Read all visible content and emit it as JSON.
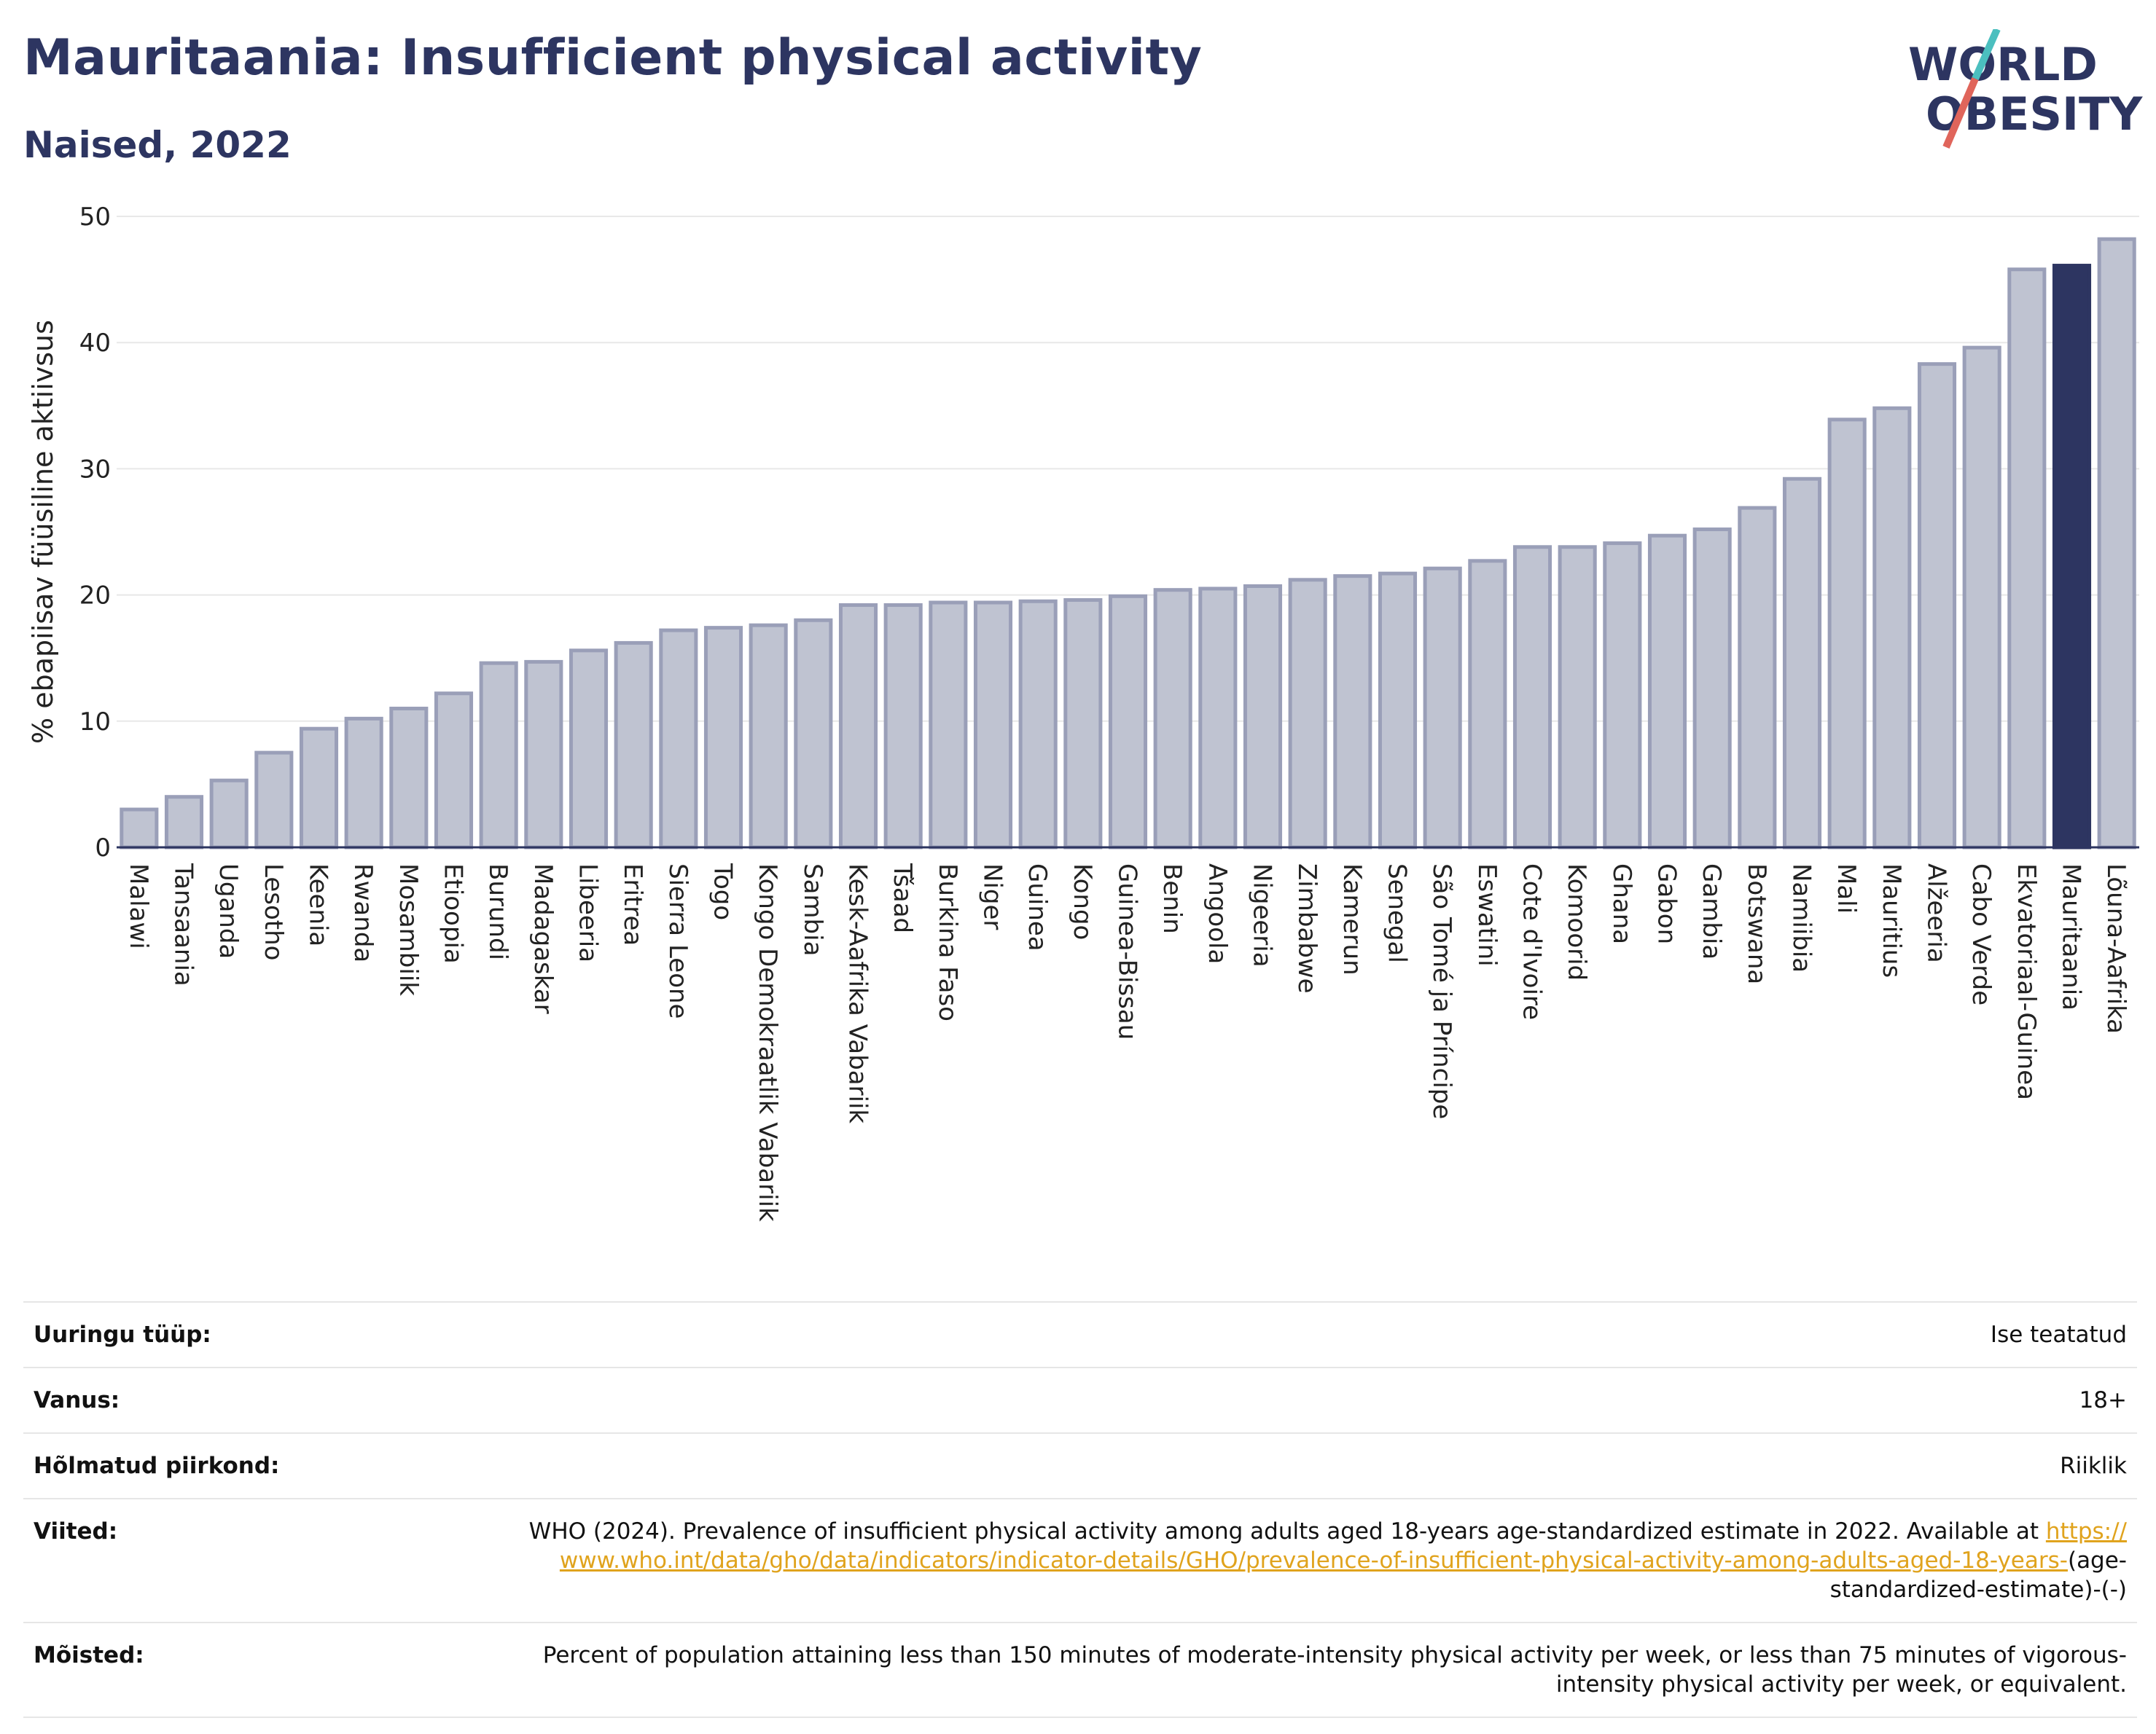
{
  "header": {
    "title": "Mauritaania: Insufficient physical activity",
    "subtitle": "Naised, 2022"
  },
  "logo": {
    "line1": "WORLD",
    "line2": "OBESITY",
    "accent_colors": [
      "#4bbfbf",
      "#e0655b"
    ],
    "text_color": "#2d3561"
  },
  "colors": {
    "bar": "#bfc3d1",
    "bar_stroke": "#9a9fb8",
    "highlight": "#2d3561",
    "grid": "#e8e8e8"
  },
  "chart_data": {
    "type": "bar",
    "ylabel": "% ebapiisav füüsiline aktiivsus",
    "xlabel": "",
    "ylim": [
      0,
      50
    ],
    "yticks": [
      0,
      10,
      20,
      30,
      40,
      50
    ],
    "grid": true,
    "highlight": "Mauritaania",
    "categories": [
      "Malawi",
      "Tansaania",
      "Uganda",
      "Lesotho",
      "Keenia",
      "Rwanda",
      "Mosambiik",
      "Etioopia",
      "Burundi",
      "Madagaskar",
      "Libeeria",
      "Eritrea",
      "Sierra Leone",
      "Togo",
      "Kongo Demokraatlik Vabariik",
      "Sambia",
      "Kesk-Aafrika Vabariik",
      "Tšaad",
      "Burkina Faso",
      "Niger",
      "Guinea",
      "Kongo",
      "Guinea-Bissau",
      "Benin",
      "Angoola",
      "Nigeeria",
      "Zimbabwe",
      "Kamerun",
      "Senegal",
      "São Tomé ja Príncipe",
      "Eswatini",
      "Cote d'Ivoire",
      "Komoorid",
      "Ghana",
      "Gabon",
      "Gambia",
      "Botswana",
      "Namiibia",
      "Mali",
      "Mauritius",
      "Alžeeria",
      "Cabo Verde",
      "Ekvatoriaal-Guinea",
      "Mauritaania",
      "Lõuna-Aafrika"
    ],
    "values": [
      3.0,
      4.0,
      5.3,
      7.5,
      9.4,
      10.2,
      11.0,
      12.2,
      14.6,
      14.7,
      15.6,
      16.2,
      17.2,
      17.4,
      17.6,
      18.0,
      19.2,
      19.2,
      19.4,
      19.4,
      19.5,
      19.6,
      19.9,
      20.4,
      20.5,
      20.7,
      21.2,
      21.5,
      21.7,
      22.1,
      22.7,
      23.8,
      23.8,
      24.1,
      24.7,
      25.2,
      26.9,
      29.2,
      33.9,
      34.8,
      38.3,
      39.6,
      45.8,
      46.1,
      48.2
    ]
  },
  "meta": [
    {
      "label": "Uuringu tüüp:",
      "value": "Ise teatatud"
    },
    {
      "label": "Vanus:",
      "value": "18+"
    },
    {
      "label": "Hõlmatud piirkond:",
      "value": "Riiklik"
    },
    {
      "label": "Viited:",
      "value": "WHO (2024). Prevalence of insufficient physical activity among adults aged 18-years age-standardized estimate in 2022. Available at",
      "link": "https://www.who.int/data/gho/data/indicators/indicator-details/GHO/prevalence-of-insufficient-physical-activity-among-adults-aged-18-years-",
      "value_suffix": "(age-standardized-estimate)-(-)"
    },
    {
      "label": "Mõisted:",
      "value": "Percent of population attaining less than 150 minutes of moderate-intensity physical activity per week, or less than 75 minutes of vigorous-intensity physical activity per week, or equivalent."
    }
  ]
}
